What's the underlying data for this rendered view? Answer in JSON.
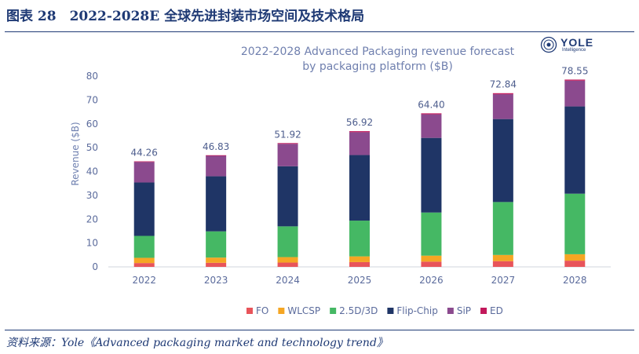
{
  "figure": {
    "caption": "图表 28　2022-2028E 全球先进封装市场空间及技术格局",
    "source": "资料来源：Yole《Advanced packaging market and technology trend》"
  },
  "logo": {
    "name": "YOLE",
    "subtitle": "Intelligence",
    "icon": "yole-logo-icon"
  },
  "chart_data": {
    "type": "bar",
    "stacked": true,
    "title": "2022-2028 Advanced Packaging revenue forecast",
    "subtitle": "by packaging platform ($B)",
    "xlabel": "",
    "ylabel": "Revenue ($B)",
    "ylim": [
      0,
      80
    ],
    "yticks": [
      0,
      10,
      20,
      30,
      40,
      50,
      60,
      70,
      80
    ],
    "grid": false,
    "legend_position": "bottom",
    "categories": [
      "2022",
      "2023",
      "2024",
      "2025",
      "2026",
      "2027",
      "2028"
    ],
    "totals": [
      "44.26",
      "46.83",
      "51.92",
      "56.92",
      "64.40",
      "72.84",
      "78.55"
    ],
    "series": [
      {
        "name": "FO",
        "color": "#e8545a",
        "values": [
          1.6,
          1.7,
          1.8,
          2.0,
          2.2,
          2.4,
          2.6
        ]
      },
      {
        "name": "WLCSP",
        "color": "#f5a623",
        "values": [
          2.2,
          2.2,
          2.3,
          2.4,
          2.5,
          2.6,
          2.7
        ]
      },
      {
        "name": "2.5D/3D",
        "color": "#45b864",
        "values": [
          9.2,
          11.0,
          12.9,
          15.0,
          18.1,
          22.2,
          25.4
        ]
      },
      {
        "name": "Flip-Chip",
        "color": "#1f3566",
        "values": [
          22.4,
          23.1,
          25.2,
          27.5,
          31.3,
          34.8,
          36.6
        ]
      },
      {
        "name": "SiP",
        "color": "#8b4a8e",
        "values": [
          8.6,
          8.6,
          9.4,
          9.6,
          9.9,
          10.4,
          10.8
        ]
      },
      {
        "name": "ED",
        "color": "#c2185b",
        "values": [
          0.26,
          0.23,
          0.32,
          0.42,
          0.4,
          0.44,
          0.45
        ]
      }
    ]
  }
}
